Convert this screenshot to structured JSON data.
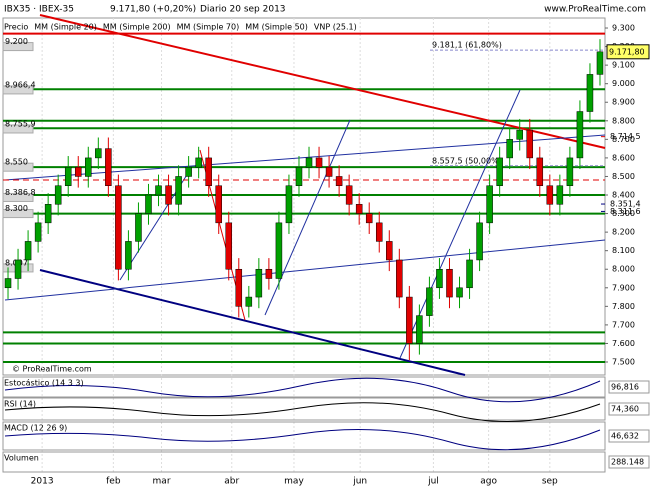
{
  "chart_data": {
    "type": "candlestick",
    "title": "IBX35 · IBEX-35",
    "price_text": "9.171,80 (+0,20%)",
    "period": "Diario 20 sep 2013",
    "source": "www.ProRealTime.com",
    "watermark": "© ProRealTime.com",
    "indicators": [
      {
        "name": "Precio",
        "color": "#000000"
      },
      {
        "name": "MM (Simple 20)",
        "color": "#e00000"
      },
      {
        "name": "MM (Simple 200)",
        "color": "#000080"
      },
      {
        "name": "MM (Simple 70)",
        "color": "#000080"
      },
      {
        "name": "MM (Simple 50)",
        "color": "#a0a0a0"
      },
      {
        "name": "VNP (25.1)",
        "color": "#a0a0a0"
      }
    ],
    "up_color": "#00a000",
    "down_color": "#e00000",
    "open": [
      7900,
      7950,
      8050,
      8150,
      8250,
      8350,
      8450,
      8550,
      8500,
      8600,
      8650,
      8450,
      8000,
      8150,
      8300,
      8400,
      8450,
      8350,
      8500,
      8550,
      8600,
      8450,
      8250,
      8000,
      7800,
      7850,
      8000,
      7950,
      8250,
      8450,
      8550,
      8600,
      8550,
      8500,
      8450,
      8350,
      8300,
      8250,
      8150,
      8050,
      7850,
      7600,
      7750,
      7900,
      8000,
      7850,
      7900,
      8050,
      8250,
      8450,
      8600,
      8700,
      8750,
      8600,
      8450,
      8350,
      8450,
      8600,
      8850,
      9050
    ],
    "high": [
      8010,
      8110,
      8210,
      8310,
      8410,
      8510,
      8610,
      8610,
      8660,
      8710,
      8710,
      8510,
      8210,
      8360,
      8460,
      8510,
      8510,
      8560,
      8610,
      8660,
      8660,
      8510,
      8310,
      8060,
      7910,
      8060,
      8060,
      8310,
      8510,
      8610,
      8660,
      8660,
      8610,
      8560,
      8510,
      8410,
      8360,
      8310,
      8210,
      8110,
      7910,
      7810,
      7960,
      8060,
      8060,
      7960,
      8110,
      8310,
      8510,
      8660,
      8760,
      8810,
      8810,
      8660,
      8510,
      8510,
      8660,
      8910,
      9110,
      9240
    ],
    "low": [
      7840,
      7890,
      7990,
      8090,
      8190,
      8290,
      8390,
      8440,
      8440,
      8540,
      8390,
      7940,
      7940,
      8090,
      8240,
      8340,
      8290,
      8290,
      8440,
      8490,
      8390,
      8190,
      7940,
      7740,
      7740,
      7790,
      7890,
      7890,
      8190,
      8390,
      8490,
      8490,
      8440,
      8390,
      8290,
      8240,
      8190,
      8090,
      7990,
      7790,
      7510,
      7540,
      7690,
      7840,
      7790,
      7790,
      7840,
      7990,
      8190,
      8390,
      8540,
      8640,
      8540,
      8390,
      8290,
      8290,
      8390,
      8540,
      8790,
      8990
    ],
    "close": [
      7950,
      8050,
      8150,
      8250,
      8350,
      8450,
      8550,
      8500,
      8600,
      8650,
      8450,
      8000,
      8150,
      8300,
      8400,
      8450,
      8350,
      8500,
      8550,
      8600,
      8450,
      8250,
      8000,
      7800,
      7850,
      8000,
      7950,
      8250,
      8450,
      8550,
      8600,
      8550,
      8500,
      8450,
      8350,
      8300,
      8250,
      8150,
      8050,
      7850,
      7600,
      7750,
      7900,
      8000,
      7850,
      7900,
      8050,
      8250,
      8450,
      8600,
      8700,
      8750,
      8600,
      8450,
      8350,
      8450,
      8600,
      8850,
      9050,
      9171.8
    ],
    "xlim": [
      -0.5,
      59.5
    ],
    "xticks": [
      {
        "value": 3.4,
        "label": "2013"
      },
      {
        "value": 10.5,
        "label": "feb"
      },
      {
        "value": 15.3,
        "label": "mar"
      },
      {
        "value": 22.3,
        "label": "abr"
      },
      {
        "value": 28.5,
        "label": "may"
      },
      {
        "value": 35.1,
        "label": "jun"
      },
      {
        "value": 42.4,
        "label": "jul"
      },
      {
        "value": 47.9,
        "label": "ago"
      },
      {
        "value": 54,
        "label": "sep"
      }
    ],
    "ylim": [
      7430,
      9354
    ],
    "yticks": [
      {
        "value": 9300,
        "label": "9.300"
      },
      {
        "value": 9200,
        "label": "9.200"
      },
      {
        "value": 9100,
        "label": "9.100"
      },
      {
        "value": 9000,
        "label": "9.000"
      },
      {
        "value": 8900,
        "label": "8.900"
      },
      {
        "value": 8800,
        "label": "8.800"
      },
      {
        "value": 8700,
        "label": "8.700"
      },
      {
        "value": 8600,
        "label": "8.600"
      },
      {
        "value": 8500,
        "label": "8.500"
      },
      {
        "value": 8400,
        "label": "8.400"
      },
      {
        "value": 8300,
        "label": "8.300"
      },
      {
        "value": 8200,
        "label": "8.200"
      },
      {
        "value": 8100,
        "label": "8.100"
      },
      {
        "value": 8000,
        "label": "8.000"
      },
      {
        "value": 7900,
        "label": "7.900"
      },
      {
        "value": 7800,
        "label": "7.800"
      },
      {
        "value": 7700,
        "label": "7.700"
      },
      {
        "value": 7600,
        "label": "7.600"
      },
      {
        "value": 7500,
        "label": "7.500"
      }
    ],
    "levels": [
      9270,
      8970,
      8800,
      8760,
      8550,
      8400,
      8300,
      7660,
      7600,
      7500
    ],
    "level_colors": [
      "#e00000",
      "#008000",
      "#008000",
      "#008000",
      "#008000",
      "#008000",
      "#008000",
      "#008000",
      "#008000",
      "#008000"
    ],
    "profile_labels": [
      {
        "value": 9200,
        "label": "9.200"
      },
      {
        "value": 8966.4,
        "label": "8.966,4"
      },
      {
        "value": 8755.9,
        "label": "8.755,9"
      },
      {
        "value": 8550,
        "label": "8.550"
      },
      {
        "value": 8386.8,
        "label": "8.386,8"
      },
      {
        "value": 8300,
        "label": "8.300"
      },
      {
        "value": 8007,
        "label": "8.007"
      }
    ],
    "price_tags": [
      {
        "value": 8714.5,
        "label": "8.714,5",
        "color": "#e00000"
      },
      {
        "value": 8351.4,
        "label": "8.351,4",
        "color": "#000080"
      },
      {
        "value": 8311.6,
        "label": "8.311,6",
        "color": "#000080"
      }
    ],
    "annotations": [
      {
        "value": 9181.1,
        "text": "9.181,1 (61,80%)"
      },
      {
        "value": 8557.5,
        "text": "8.557,5 (50,00%)"
      }
    ],
    "last": {
      "value": 9171.8,
      "label": "9.171,80"
    },
    "panels": [
      {
        "name": "Estocástico (14 3 3)",
        "value_label": "96,816"
      },
      {
        "name": "RSI (14)",
        "value_label": "74,360"
      },
      {
        "name": "MACD (12 26 9)",
        "value_label": "46,632"
      },
      {
        "name": "Volumen",
        "value_label": "288.148"
      }
    ]
  }
}
